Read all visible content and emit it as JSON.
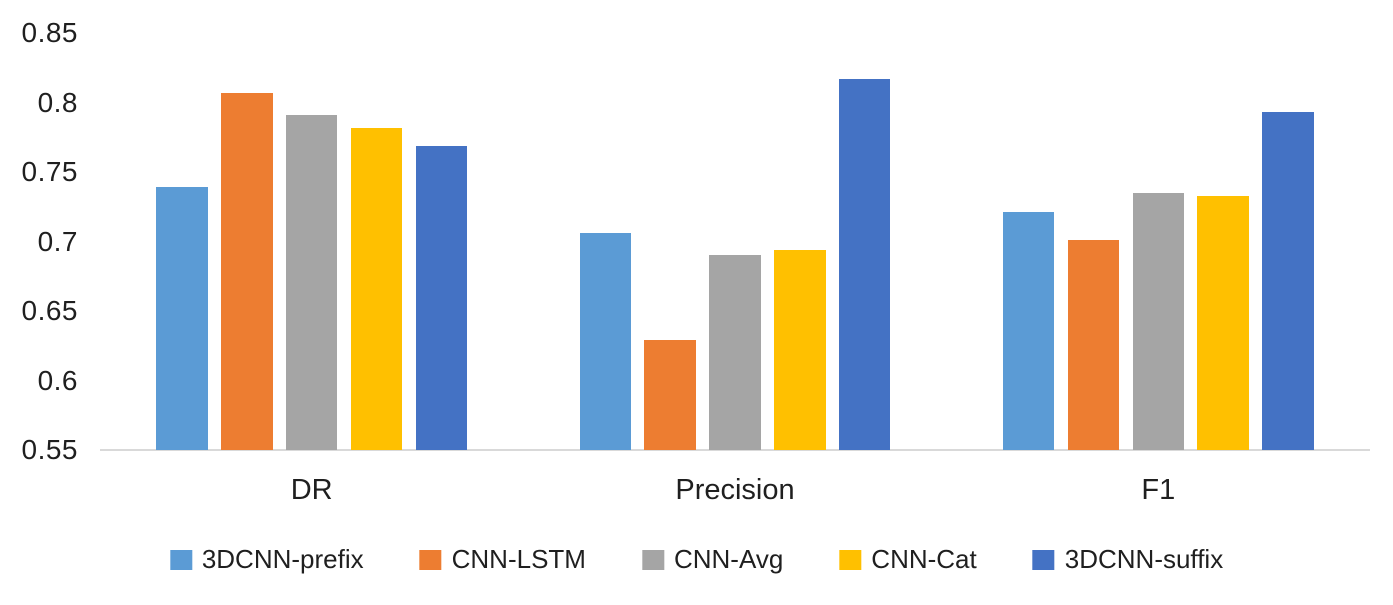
{
  "chart_data": {
    "type": "bar",
    "title": "",
    "xlabel": "",
    "ylabel": "",
    "categories": [
      "DR",
      "Precision",
      "F1"
    ],
    "series": [
      {
        "name": "3DCNN-prefix",
        "color": "#5B9BD5",
        "values": [
          0.739,
          0.706,
          0.721
        ]
      },
      {
        "name": "CNN-LSTM",
        "color": "#ED7D31",
        "values": [
          0.807,
          0.629,
          0.701
        ]
      },
      {
        "name": "CNN-Avg",
        "color": "#A5A5A5",
        "values": [
          0.791,
          0.69,
          0.735
        ]
      },
      {
        "name": "CNN-Cat",
        "color": "#FFC000",
        "values": [
          0.782,
          0.694,
          0.733
        ]
      },
      {
        "name": "3DCNN-suffix",
        "color": "#4472C4",
        "values": [
          0.769,
          0.817,
          0.793
        ]
      }
    ],
    "ylim": [
      0.55,
      0.85
    ],
    "yticks": [
      0.85,
      0.8,
      0.75,
      0.7,
      0.65,
      0.6,
      0.55
    ],
    "ytick_labels": [
      "0.85",
      "0.8",
      "0.75",
      "0.7",
      "0.65",
      "0.6",
      "0.55"
    ],
    "grid": false,
    "legend_position": "bottom",
    "axis_color": "#D9D9D9",
    "text_color": "#1F1F1F",
    "background_color": "#FFFFFF"
  }
}
